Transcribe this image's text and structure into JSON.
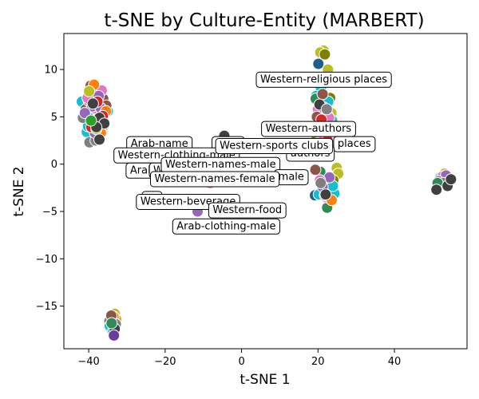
{
  "chart_data": {
    "type": "scatter",
    "title": "t-SNE by Culture-Entity (MARBERT)",
    "xlabel": "t-SNE 1",
    "ylabel": "t-SNE 2",
    "xlim": [
      -46.5,
      59
    ],
    "ylim": [
      -19.5,
      13.8
    ],
    "xticks": [
      -40,
      -20,
      0,
      20,
      40
    ],
    "yticks": [
      -15,
      -10,
      -5,
      0,
      5,
      10
    ],
    "grid": false,
    "point_groups": [
      {
        "color": "#17becf",
        "points": [
          [
            -41.8,
            6.6
          ],
          [
            -40.5,
            3.4
          ],
          [
            -38.9,
            6.0
          ],
          [
            -37.8,
            6.2
          ],
          [
            -36.5,
            4.6
          ],
          [
            -35.0,
            5.6
          ],
          [
            -37.2,
            3.6
          ],
          [
            -39.6,
            5.2
          ],
          [
            -40.2,
            4.0
          ]
        ]
      },
      {
        "color": "#8c564b",
        "points": [
          [
            -39.5,
            8.3
          ],
          [
            -38.0,
            7.6
          ],
          [
            -36.2,
            6.9
          ],
          [
            -38.6,
            4.3
          ],
          [
            -37.0,
            3.1
          ],
          [
            -40.8,
            5.8
          ],
          [
            -35.4,
            6.2
          ]
        ]
      },
      {
        "color": "#7f7f7f",
        "points": [
          [
            -41.5,
            4.9
          ],
          [
            -39.8,
            2.3
          ],
          [
            -38.2,
            2.5
          ],
          [
            -36.8,
            5.4
          ],
          [
            -40.0,
            6.7
          ],
          [
            -37.5,
            5.0
          ]
        ]
      },
      {
        "color": "#e377c2",
        "points": [
          [
            -38.5,
            5.9
          ],
          [
            -36.6,
            7.8
          ],
          [
            -40.3,
            7.0
          ],
          [
            -37.9,
            4.7
          ],
          [
            -36.0,
            4.1
          ]
        ]
      },
      {
        "color": "#9467bd",
        "points": [
          [
            -39.1,
            6.1
          ],
          [
            -37.4,
            7.2
          ],
          [
            -36.8,
            5.9
          ],
          [
            -38.4,
            3.3
          ],
          [
            -41.0,
            5.4
          ]
        ]
      },
      {
        "color": "#ff7f0e",
        "points": [
          [
            -38.6,
            8.4
          ],
          [
            -35.5,
            5.6
          ],
          [
            -36.8,
            3.3
          ]
        ]
      },
      {
        "color": "#d62728",
        "points": [
          [
            -37.7,
            6.6
          ],
          [
            -36.3,
            5.1
          ],
          [
            -39.3,
            3.9
          ]
        ]
      },
      {
        "color": "#bcbd22",
        "points": [
          [
            -39.9,
            7.7
          ],
          [
            -38.0,
            3.7
          ]
        ]
      },
      {
        "color": "#404040",
        "points": [
          [
            -38.9,
            6.4
          ],
          [
            -37.2,
            4.9
          ],
          [
            -35.9,
            4.3
          ],
          [
            -38.0,
            3.9
          ],
          [
            -37.2,
            2.6
          ]
        ]
      },
      {
        "color": "#2ca02c",
        "points": [
          [
            -39.4,
            4.6
          ]
        ]
      },
      {
        "color": "#bcbd22",
        "points": [
          [
            21.5,
            12.0
          ],
          [
            20.6,
            11.8
          ],
          [
            22.6,
            10.0
          ],
          [
            23.5,
            5.4
          ],
          [
            24.9,
            -0.4
          ],
          [
            25.3,
            -1.0
          ],
          [
            21.6,
            -1.9
          ]
        ]
      },
      {
        "color": "#808000",
        "points": [
          [
            21.8,
            11.6
          ],
          [
            23.2,
            7.0
          ],
          [
            20.5,
            6.2
          ],
          [
            22.2,
            4.2
          ],
          [
            19.6,
            3.0
          ],
          [
            24.0,
            -1.7
          ]
        ]
      },
      {
        "color": "#1f5f8b",
        "points": [
          [
            20.1,
            10.6
          ],
          [
            21.3,
            5.5
          ],
          [
            23.4,
            3.4
          ],
          [
            19.2,
            -3.3
          ],
          [
            24.1,
            -2.8
          ]
        ]
      },
      {
        "color": "#17becf",
        "points": [
          [
            20.8,
            8.0
          ],
          [
            19.5,
            7.2
          ],
          [
            22.7,
            6.6
          ],
          [
            21.0,
            5.2
          ],
          [
            23.7,
            4.6
          ],
          [
            22.0,
            -2.1
          ],
          [
            20.2,
            -3.2
          ],
          [
            24.3,
            -3.1
          ],
          [
            23.9,
            -2.3
          ]
        ]
      },
      {
        "color": "#2e8b57",
        "points": [
          [
            19.4,
            6.9
          ],
          [
            21.6,
            4.1
          ],
          [
            22.4,
            -4.6
          ],
          [
            20.6,
            -0.8
          ]
        ]
      },
      {
        "color": "#9467bd",
        "points": [
          [
            21.4,
            6.0
          ],
          [
            20.3,
            4.8
          ],
          [
            22.6,
            5.1
          ],
          [
            19.8,
            2.2
          ],
          [
            21.2,
            -2.4
          ],
          [
            23.0,
            -1.4
          ]
        ]
      },
      {
        "color": "#e377c2",
        "points": [
          [
            20.0,
            5.8
          ],
          [
            22.9,
            4.9
          ],
          [
            21.5,
            3.0
          ],
          [
            20.5,
            -1.7
          ],
          [
            22.1,
            -3.5
          ]
        ]
      },
      {
        "color": "#8c564b",
        "points": [
          [
            21.2,
            7.4
          ],
          [
            19.7,
            5.0
          ],
          [
            23.0,
            3.7
          ],
          [
            21.8,
            -3.3
          ],
          [
            19.3,
            -0.6
          ]
        ]
      },
      {
        "color": "#d62728",
        "points": [
          [
            20.9,
            4.7
          ],
          [
            22.5,
            2.5
          ]
        ]
      },
      {
        "color": "#ff7f0e",
        "points": [
          [
            19.8,
            3.5
          ],
          [
            23.6,
            -3.8
          ]
        ]
      },
      {
        "color": "#404040",
        "points": [
          [
            20.4,
            6.3
          ],
          [
            22.0,
            -3.2
          ]
        ]
      },
      {
        "color": "#7f7f7f",
        "points": [
          [
            22.3,
            5.8
          ],
          [
            20.7,
            -2.0
          ]
        ]
      },
      {
        "color": "#7f7f7f",
        "points": [
          [
            -4.9,
            2.8
          ],
          [
            6.0,
            2.2
          ],
          [
            -2.5,
            0.5
          ]
        ]
      },
      {
        "color": "#404040",
        "points": [
          [
            -4.5,
            3.0
          ]
        ]
      },
      {
        "color": "#e377c2",
        "points": [
          [
            -8.2,
            -2.0
          ]
        ]
      },
      {
        "color": "#8c564b",
        "points": [
          [
            -6.4,
            -6.8
          ]
        ]
      },
      {
        "color": "#9467bd",
        "points": [
          [
            -11.5,
            -5.0
          ],
          [
            -9.5,
            -4.3
          ]
        ]
      },
      {
        "color": "#17becf",
        "points": [
          [
            1.6,
            -1.6
          ]
        ]
      },
      {
        "color": "#bcbd22",
        "points": [
          [
            -14.6,
            -3.7
          ]
        ]
      },
      {
        "color": "#bcbd22",
        "points": [
          [
            53.1,
            -1.0
          ],
          [
            54.5,
            -1.5
          ]
        ]
      },
      {
        "color": "#17becf",
        "points": [
          [
            52.0,
            -1.4
          ],
          [
            53.8,
            -2.1
          ]
        ]
      },
      {
        "color": "#e377c2",
        "points": [
          [
            52.6,
            -1.3
          ]
        ]
      },
      {
        "color": "#9467bd",
        "points": [
          [
            53.5,
            -1.2
          ]
        ]
      },
      {
        "color": "#7f7f7f",
        "points": [
          [
            51.5,
            -1.8
          ],
          [
            52.8,
            -2.0
          ]
        ]
      },
      {
        "color": "#2e8b57",
        "points": [
          [
            51.3,
            -2.0
          ]
        ]
      },
      {
        "color": "#404040",
        "points": [
          [
            51.0,
            -2.7
          ],
          [
            53.9,
            -2.3
          ],
          [
            54.8,
            -1.6
          ]
        ]
      },
      {
        "color": "#bcbd22",
        "points": [
          [
            -33.2,
            -15.8
          ],
          [
            -32.8,
            -16.4
          ]
        ]
      },
      {
        "color": "#ff7f0e",
        "points": [
          [
            -33.5,
            -16.1
          ]
        ]
      },
      {
        "color": "#e377c2",
        "points": [
          [
            -34.3,
            -16.2
          ],
          [
            -33.0,
            -17.2
          ]
        ]
      },
      {
        "color": "#9467bd",
        "points": [
          [
            -33.3,
            -16.8
          ],
          [
            -34.0,
            -17.5
          ]
        ]
      },
      {
        "color": "#7f7f7f",
        "points": [
          [
            -34.6,
            -16.6
          ],
          [
            -32.9,
            -16.9
          ]
        ]
      },
      {
        "color": "#8c564b",
        "points": [
          [
            -34.1,
            -16.0
          ]
        ]
      },
      {
        "color": "#17becf",
        "points": [
          [
            -34.5,
            -17.1
          ],
          [
            -33.6,
            -17.6
          ]
        ]
      },
      {
        "color": "#404040",
        "points": [
          [
            -33.2,
            -17.4
          ]
        ]
      },
      {
        "color": "#2e8b57",
        "points": [
          [
            -34.0,
            -16.8
          ]
        ]
      },
      {
        "color": "#6a3d9a",
        "points": [
          [
            -33.4,
            -18.1
          ]
        ]
      }
    ],
    "annotations": [
      {
        "text": "Western-religious places",
        "x": 21.5,
        "y": 9.0
      },
      {
        "text": "Western-authors",
        "x": 17.5,
        "y": 3.8
      },
      {
        "text": "places",
        "x": 29.5,
        "y": 2.2
      },
      {
        "text": "authors",
        "x": 18.0,
        "y": 1.2
      },
      {
        "text": "Arab-name",
        "x": -21.5,
        "y": 2.2
      },
      {
        "text": "Arab",
        "x": -3.5,
        "y": 2.2
      },
      {
        "text": "Western-clothing-male",
        "x": -17.0,
        "y": 1.0
      },
      {
        "text": "Western-sports clubs",
        "x": 8.5,
        "y": 2.0
      },
      {
        "text": "Arab",
        "x": -26.0,
        "y": -0.6
      },
      {
        "text": "We",
        "x": -21.0,
        "y": -0.6
      },
      {
        "text": "Western-names-male",
        "x": -5.5,
        "y": 0.0
      },
      {
        "text": "male",
        "x": 13.0,
        "y": -1.3
      },
      {
        "text": "Western-names-female",
        "x": -7.0,
        "y": -1.5
      },
      {
        "text": "Ar",
        "x": -23.5,
        "y": -3.6
      },
      {
        "text": "Western-beverage",
        "x": -14.0,
        "y": -3.9
      },
      {
        "text": "Western-food",
        "x": 1.5,
        "y": -4.8
      },
      {
        "text": "Arab-clothing-male",
        "x": -4.0,
        "y": -6.5
      }
    ]
  }
}
